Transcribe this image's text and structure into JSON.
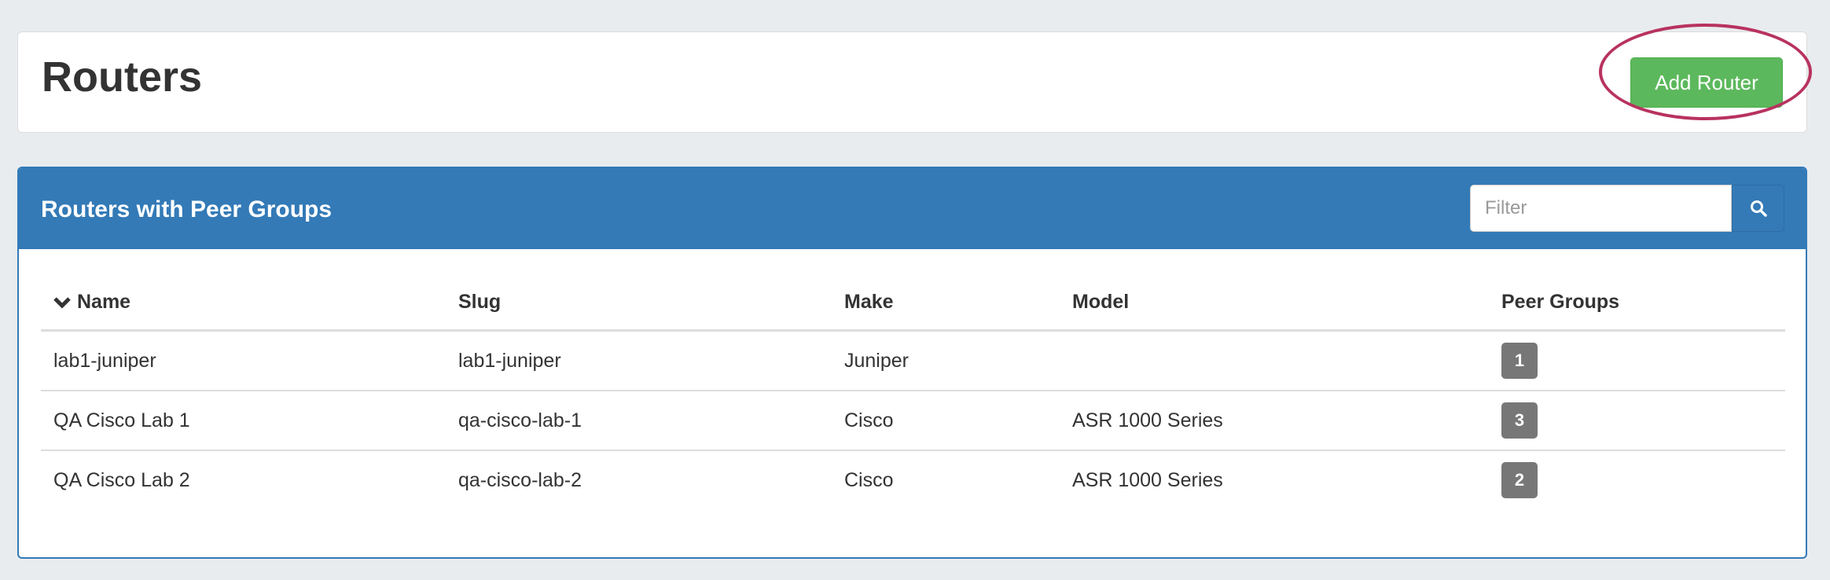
{
  "header": {
    "title": "Routers",
    "add_button": "Add Router"
  },
  "panel": {
    "title": "Routers with Peer Groups",
    "filter_placeholder": "Filter",
    "search_icon": "search-icon",
    "columns": [
      "Name",
      "Slug",
      "Make",
      "Model",
      "Peer Groups"
    ],
    "sort_icon": "chevron-down-icon",
    "rows": [
      {
        "name": "lab1-juniper",
        "slug": "lab1-juniper",
        "make": "Juniper",
        "model": "",
        "peer_groups": "1"
      },
      {
        "name": "QA Cisco Lab 1",
        "slug": "qa-cisco-lab-1",
        "make": "Cisco",
        "model": "ASR 1000 Series",
        "peer_groups": "3"
      },
      {
        "name": "QA Cisco Lab 2",
        "slug": "qa-cisco-lab-2",
        "make": "Cisco",
        "model": "ASR 1000 Series",
        "peer_groups": "2"
      }
    ]
  },
  "colors": {
    "primary": "#337ab7",
    "success": "#5cb85c",
    "highlight": "#b8325f",
    "badge": "#777777"
  }
}
